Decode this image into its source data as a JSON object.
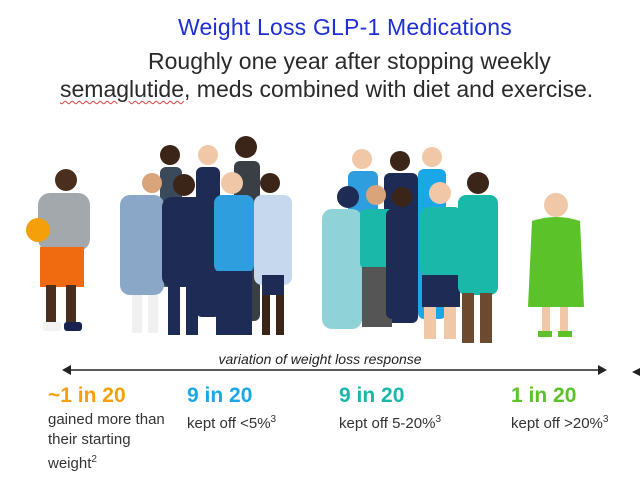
{
  "title": "Weight Loss GLP-1 Medications",
  "subtitle": {
    "line1": "Roughly one year after stopping weekly",
    "word": "semaglutide",
    "line2_rest": ", meds combined with diet and exercise."
  },
  "axis_label": "variation of weight loss response",
  "colors": {
    "orange": "#f5a00a",
    "blue": "#1aa7e8",
    "teal": "#19b8a8",
    "green": "#5cc22a"
  },
  "groups": [
    {
      "ratio": "~1 in 20",
      "desc": "gained more than their starting weight",
      "sup": "2",
      "color": "#f5a00a"
    },
    {
      "ratio": "9 in 20",
      "desc": "kept off <5%",
      "sup": "3",
      "color": "#1aa7e8"
    },
    {
      "ratio": "9 in 20",
      "desc": "kept off 5-20%",
      "sup": "3",
      "color": "#19b8a8"
    },
    {
      "ratio": "1 in 20",
      "desc": "kept off >20%",
      "sup": "3",
      "color": "#5cc22a"
    }
  ]
}
